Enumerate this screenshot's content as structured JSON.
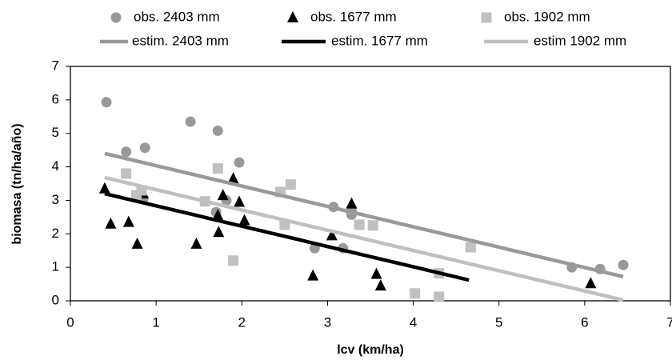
{
  "chart_data": {
    "type": "scatter",
    "x_label": "lcv (km/ha)",
    "y_label": "biomasa (tn/ha/año)",
    "xlim": [
      0,
      7
    ],
    "ylim": [
      0,
      7
    ],
    "xticks": [
      0,
      1,
      2,
      3,
      4,
      5,
      6,
      7
    ],
    "yticks": [
      0,
      1,
      2,
      3,
      4,
      5,
      6,
      7
    ],
    "series": [
      {
        "name": "obs. 2403 mm",
        "color": "#999999",
        "marker": "circle",
        "x": [
          0.42,
          0.65,
          0.87,
          0.85,
          1.4,
          1.72,
          1.97,
          1.7,
          1.82,
          3.07,
          3.28,
          3.28,
          2.85,
          3.18,
          5.85,
          6.18,
          6.45
        ],
        "y": [
          5.93,
          4.45,
          4.57,
          3.05,
          5.35,
          5.08,
          4.13,
          2.65,
          3.0,
          2.8,
          2.57,
          2.68,
          1.57,
          1.57,
          1.0,
          0.95,
          1.07
        ]
      },
      {
        "name": "obs. 1677 mm",
        "color": "#000000",
        "marker": "triangle",
        "x": [
          0.4,
          0.47,
          0.68,
          0.78,
          0.85,
          1.47,
          1.72,
          1.73,
          1.78,
          1.9,
          1.97,
          2.03,
          2.83,
          3.05,
          3.28,
          3.57,
          3.62,
          6.07
        ],
        "y": [
          3.35,
          2.3,
          2.35,
          1.7,
          3.2,
          1.7,
          2.55,
          2.05,
          3.15,
          3.65,
          2.95,
          2.4,
          0.75,
          1.95,
          2.9,
          0.8,
          0.45,
          0.52
        ]
      },
      {
        "name": "obs. 1902 mm",
        "color": "#c0c0c0",
        "marker": "square",
        "x": [
          0.65,
          0.77,
          0.83,
          1.57,
          1.72,
          1.9,
          2.45,
          2.57,
          2.5,
          3.37,
          3.53,
          4.02,
          4.3,
          4.3,
          4.67
        ],
        "y": [
          3.8,
          3.15,
          3.3,
          2.97,
          3.95,
          1.2,
          3.25,
          3.47,
          2.27,
          2.27,
          2.25,
          0.22,
          0.12,
          0.82,
          1.6
        ]
      },
      {
        "name": "estim. 2403 mm",
        "color": "#999999",
        "marker": "line",
        "x": [
          0.4,
          6.45
        ],
        "y": [
          4.4,
          0.72
        ]
      },
      {
        "name": "estim. 1677 mm",
        "color": "#000000",
        "marker": "line",
        "x": [
          0.4,
          4.65
        ],
        "y": [
          3.2,
          0.62
        ]
      },
      {
        "name": "estim 1902 mm",
        "color": "#c0c0c0",
        "marker": "line",
        "x": [
          0.4,
          6.45
        ],
        "y": [
          3.68,
          0.02
        ]
      }
    ]
  }
}
